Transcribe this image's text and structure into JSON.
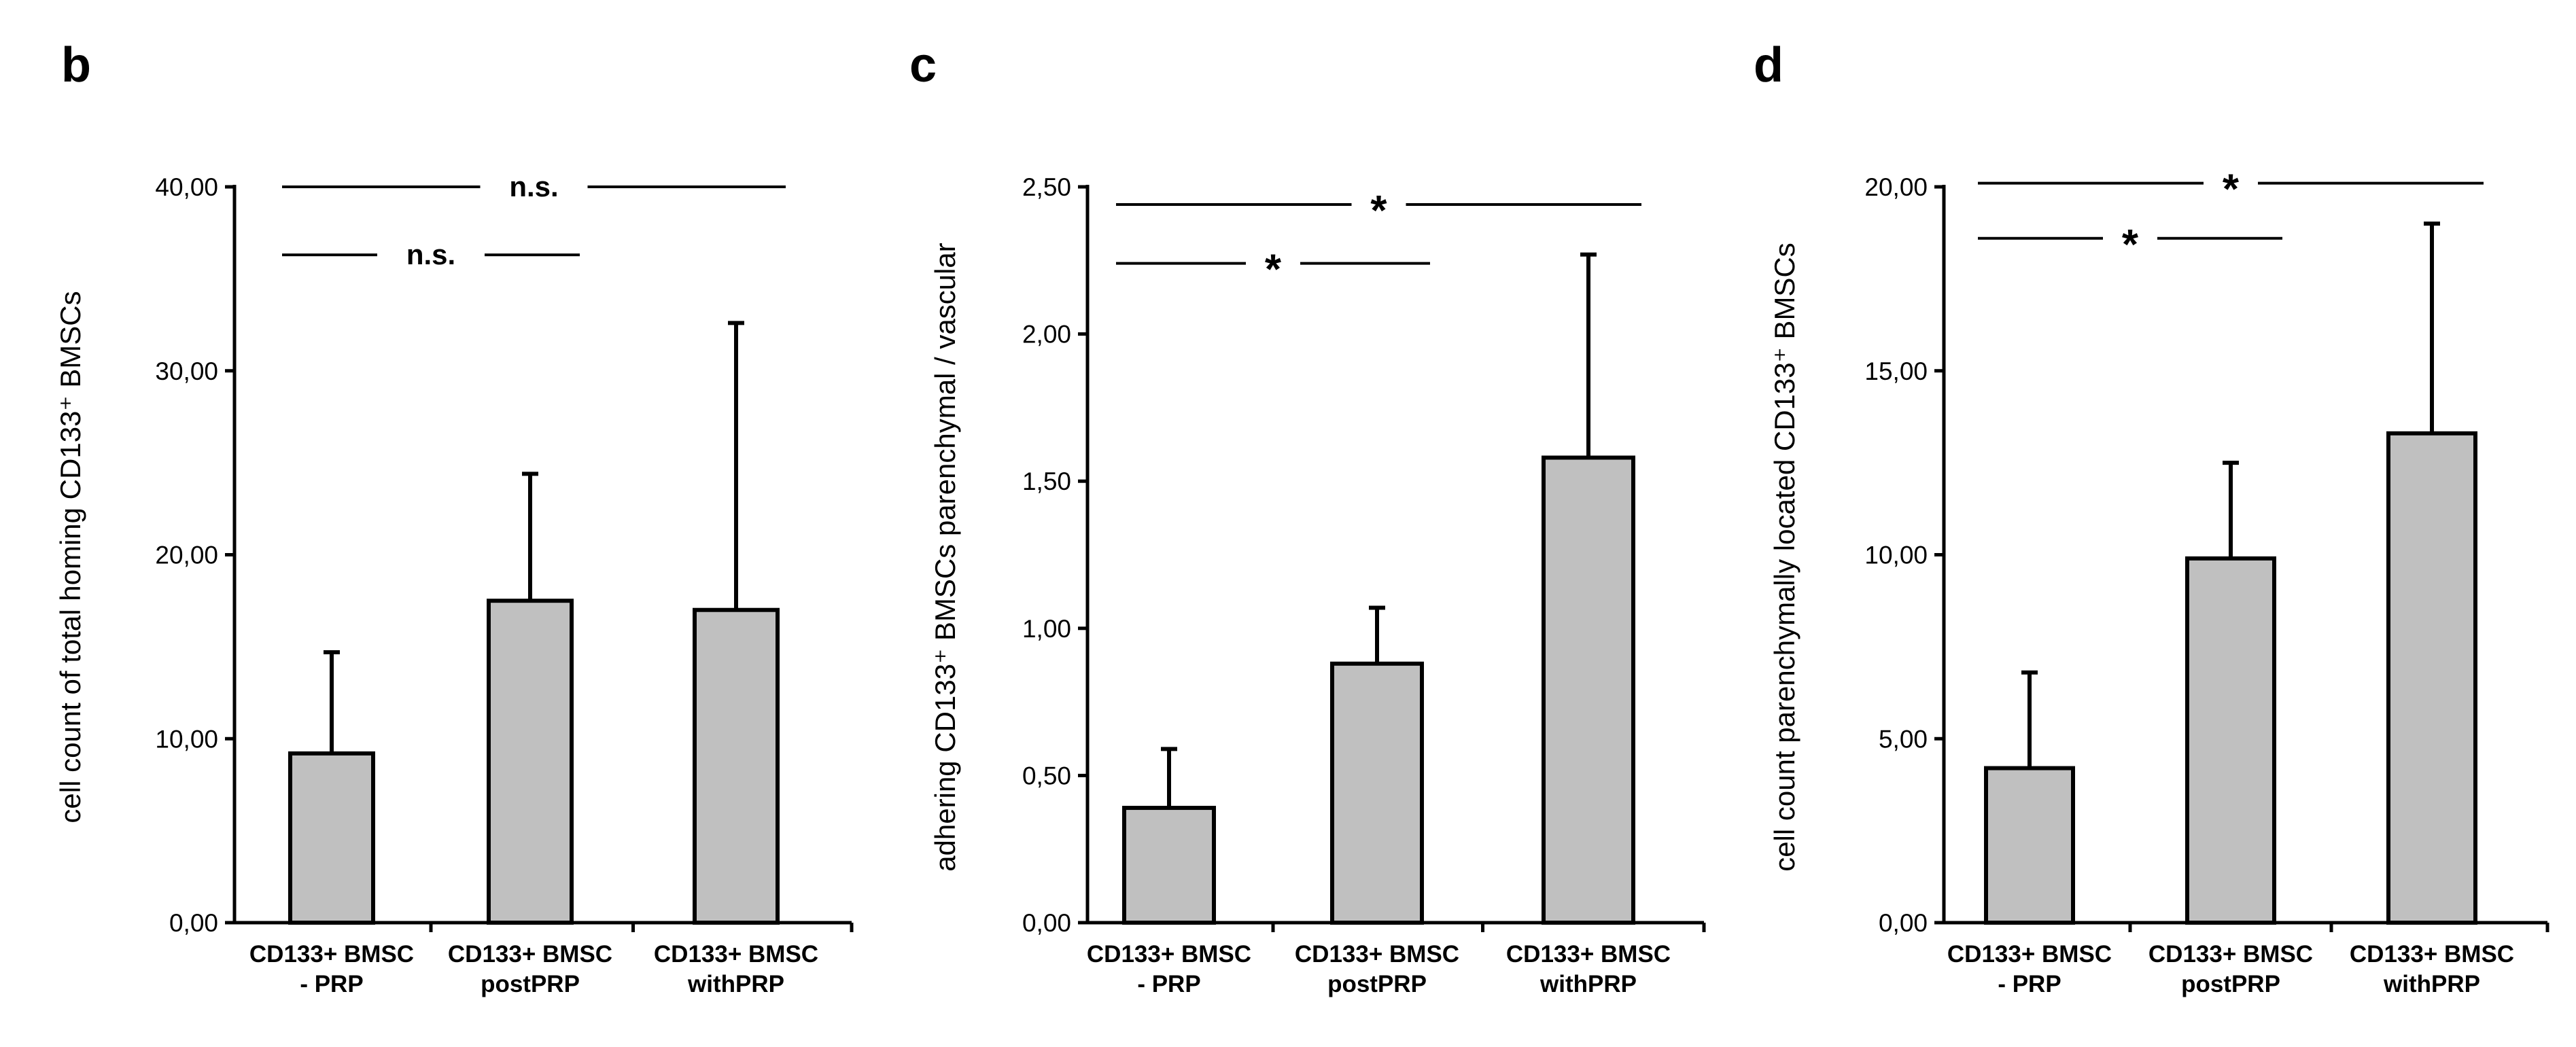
{
  "chart_data": [
    {
      "type": "bar",
      "panel_label": "b",
      "ylabel": "cell count of total homing CD133⁺ BMSCs",
      "ylim": [
        0,
        40
      ],
      "yticks": [
        "0,00",
        "10,00",
        "20,00",
        "30,00",
        "40,00"
      ],
      "categories": [
        {
          "line1": "CD133+ BMSC",
          "line2": "- PRP"
        },
        {
          "line1": "CD133+ BMSC",
          "line2": "postPRP"
        },
        {
          "line1": "CD133+ BMSC",
          "line2": "withPRP"
        }
      ],
      "values": [
        9.2,
        17.5,
        17.0
      ],
      "errors": [
        5.5,
        6.9,
        15.6
      ],
      "significance": [
        {
          "label": "n.s.",
          "from": 0,
          "to": 2,
          "level": 40.0
        },
        {
          "label": "n.s.",
          "from": 0,
          "to": 1,
          "level": 36.3
        }
      ]
    },
    {
      "type": "bar",
      "panel_label": "c",
      "ylabel": "adhering CD133⁺ BMSCs parenchymal / vascular",
      "ylim": [
        0,
        2.5
      ],
      "yticks": [
        "0,00",
        "0,50",
        "1,00",
        "1,50",
        "2,00",
        "2,50"
      ],
      "categories": [
        {
          "line1": "CD133+ BMSC",
          "line2": "- PRP"
        },
        {
          "line1": "CD133+ BMSC",
          "line2": "postPRP"
        },
        {
          "line1": "CD133+ BMSC",
          "line2": "withPRP"
        }
      ],
      "values": [
        0.39,
        0.88,
        1.58
      ],
      "errors": [
        0.2,
        0.19,
        0.69
      ],
      "significance": [
        {
          "label": "*",
          "from": 0,
          "to": 2,
          "level": 2.44
        },
        {
          "label": "*",
          "from": 0,
          "to": 1,
          "level": 2.24
        }
      ]
    },
    {
      "type": "bar",
      "panel_label": "d",
      "ylabel": "cell count parenchymally located CD133⁺ BMSCs",
      "ylim": [
        0,
        20
      ],
      "yticks": [
        "0,00",
        "5,00",
        "10,00",
        "15,00",
        "20,00"
      ],
      "categories": [
        {
          "line1": "CD133+ BMSC",
          "line2": "- PRP"
        },
        {
          "line1": "CD133+ BMSC",
          "line2": "postPRP"
        },
        {
          "line1": "CD133+ BMSC",
          "line2": "withPRP"
        }
      ],
      "values": [
        4.2,
        9.9,
        13.3
      ],
      "errors": [
        2.6,
        2.6,
        5.7
      ],
      "significance": [
        {
          "label": "*",
          "from": 0,
          "to": 2,
          "level": 20.1
        },
        {
          "label": "*",
          "from": 0,
          "to": 1,
          "level": 18.6
        }
      ]
    }
  ]
}
